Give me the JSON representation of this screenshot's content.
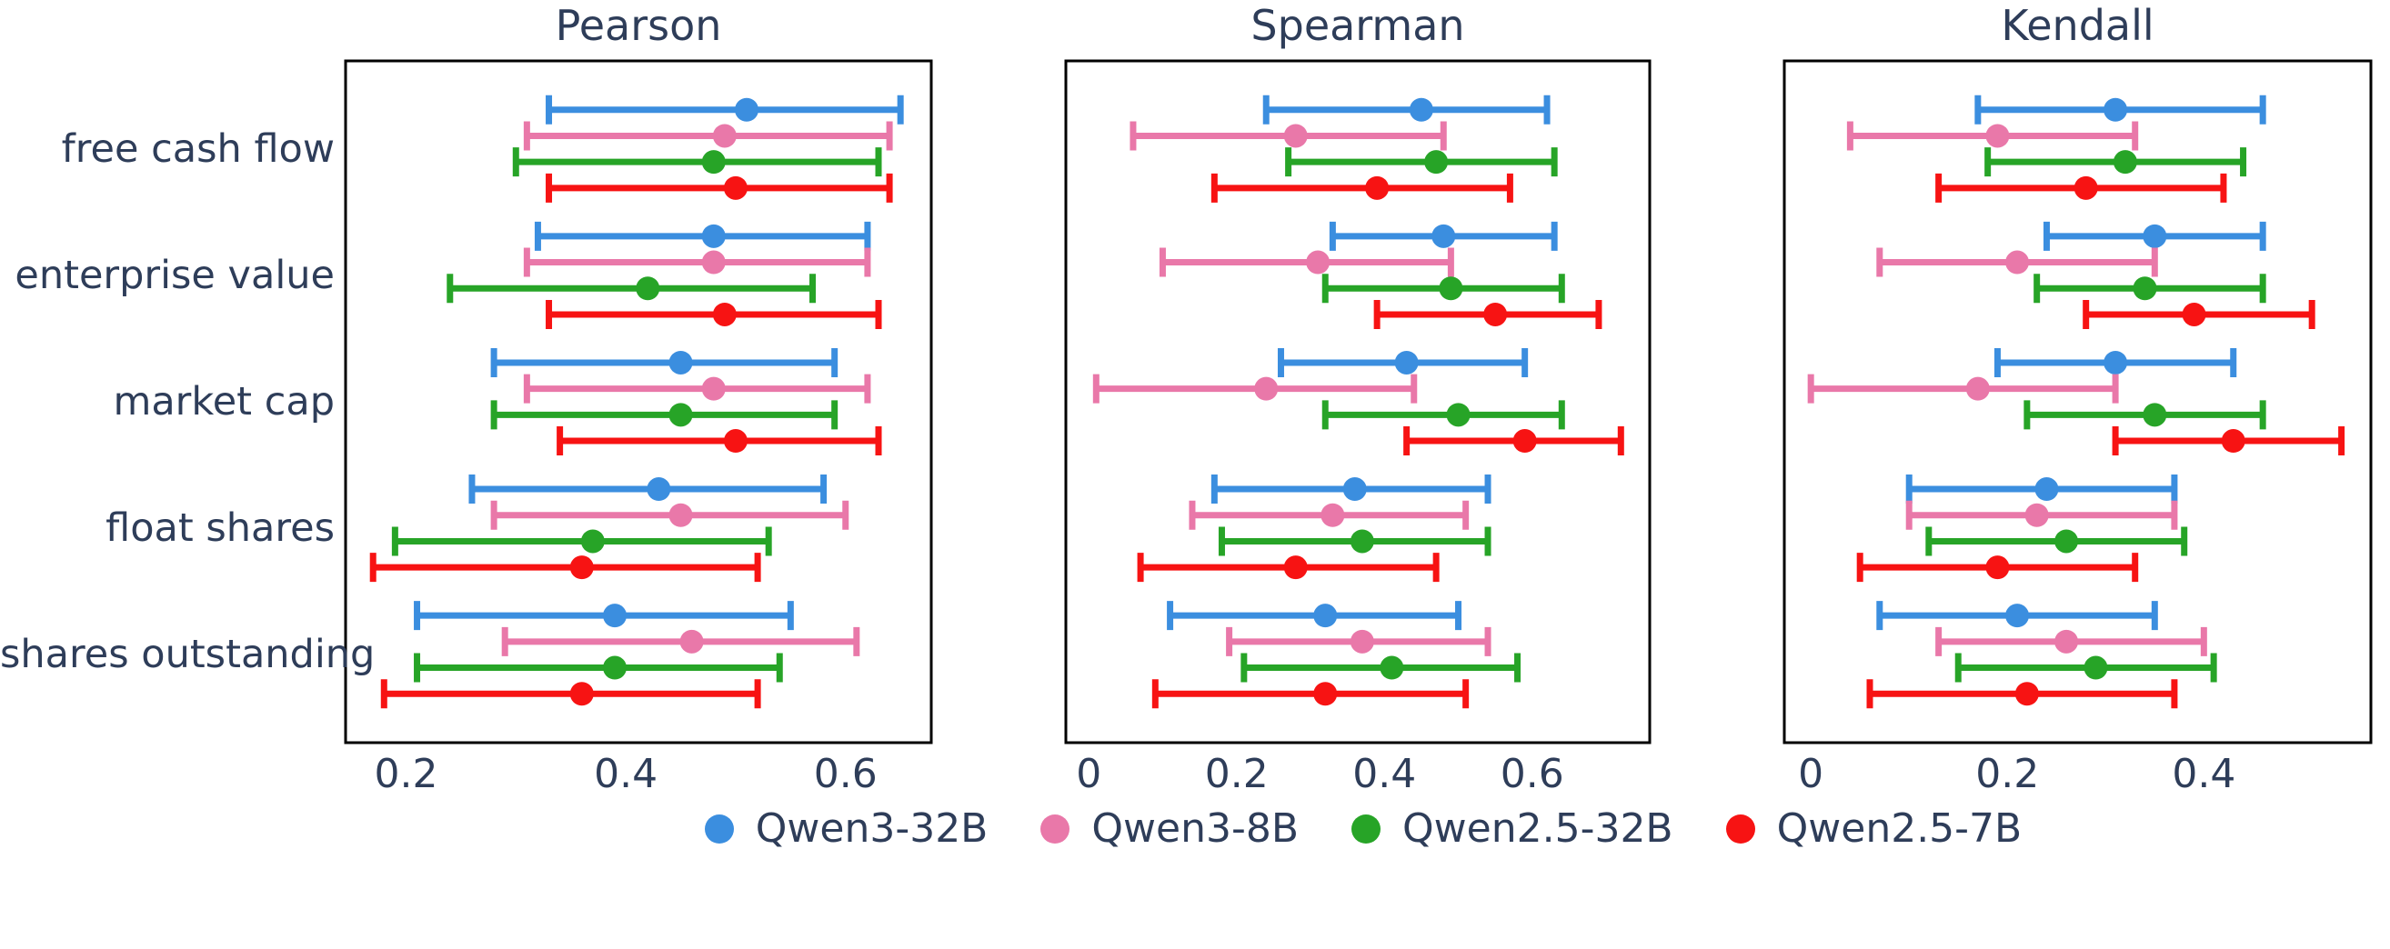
{
  "figure": {
    "background": "#ffffff",
    "text_color": "#2e3d59",
    "border_color": "#000000"
  },
  "chart_data": {
    "type": "scatter",
    "subtype": "dot-with-horizontal-errorbars",
    "orientation": "horizontal",
    "grid": false,
    "categories": [
      "free cash flow",
      "enterprise value",
      "market cap",
      "float shares",
      "shares outstanding"
    ],
    "series_names": [
      "Qwen3-32B",
      "Qwen3-8B",
      "Qwen2.5-32B",
      "Qwen2.5-7B"
    ],
    "series_colors": [
      "#3B8EDF",
      "#E978A9",
      "#27A427",
      "#F71313"
    ],
    "panels": [
      {
        "title": "Pearson",
        "xlim": [
          0.145,
          0.678
        ],
        "xticks": [
          0.2,
          0.4,
          0.6
        ],
        "xtick_labels": [
          "0.2",
          "0.4",
          "0.6"
        ],
        "series": [
          {
            "name": "Qwen3-32B",
            "color": "#3B8EDF",
            "points": [
              [
                0.51,
                0.33,
                0.65
              ],
              [
                0.48,
                0.32,
                0.62
              ],
              [
                0.45,
                0.28,
                0.59
              ],
              [
                0.43,
                0.26,
                0.58
              ],
              [
                0.39,
                0.21,
                0.55
              ]
            ]
          },
          {
            "name": "Qwen3-8B",
            "color": "#E978A9",
            "points": [
              [
                0.49,
                0.31,
                0.64
              ],
              [
                0.48,
                0.31,
                0.62
              ],
              [
                0.48,
                0.31,
                0.62
              ],
              [
                0.45,
                0.28,
                0.6
              ],
              [
                0.46,
                0.29,
                0.61
              ]
            ]
          },
          {
            "name": "Qwen2.5-32B",
            "color": "#27A427",
            "points": [
              [
                0.48,
                0.3,
                0.63
              ],
              [
                0.42,
                0.24,
                0.57
              ],
              [
                0.45,
                0.28,
                0.59
              ],
              [
                0.37,
                0.19,
                0.53
              ],
              [
                0.39,
                0.21,
                0.54
              ]
            ]
          },
          {
            "name": "Qwen2.5-7B",
            "color": "#F71313",
            "points": [
              [
                0.5,
                0.33,
                0.64
              ],
              [
                0.49,
                0.33,
                0.63
              ],
              [
                0.5,
                0.34,
                0.63
              ],
              [
                0.36,
                0.17,
                0.52
              ],
              [
                0.36,
                0.18,
                0.52
              ]
            ]
          }
        ]
      },
      {
        "title": "Spearman",
        "xlim": [
          -0.031,
          0.759
        ],
        "xticks": [
          0,
          0.2,
          0.4,
          0.6
        ],
        "xtick_labels": [
          "0",
          "0.2",
          "0.4",
          "0.6"
        ],
        "series": [
          {
            "name": "Qwen3-32B",
            "color": "#3B8EDF",
            "points": [
              [
                0.45,
                0.24,
                0.62
              ],
              [
                0.48,
                0.33,
                0.63
              ],
              [
                0.43,
                0.26,
                0.59
              ],
              [
                0.36,
                0.17,
                0.54
              ],
              [
                0.32,
                0.11,
                0.5
              ]
            ]
          },
          {
            "name": "Qwen3-8B",
            "color": "#E978A9",
            "points": [
              [
                0.28,
                0.06,
                0.48
              ],
              [
                0.31,
                0.1,
                0.49
              ],
              [
                0.24,
                0.01,
                0.44
              ],
              [
                0.33,
                0.14,
                0.51
              ],
              [
                0.37,
                0.19,
                0.54
              ]
            ]
          },
          {
            "name": "Qwen2.5-32B",
            "color": "#27A427",
            "points": [
              [
                0.47,
                0.27,
                0.63
              ],
              [
                0.49,
                0.32,
                0.64
              ],
              [
                0.5,
                0.32,
                0.64
              ],
              [
                0.37,
                0.18,
                0.54
              ],
              [
                0.41,
                0.21,
                0.58
              ]
            ]
          },
          {
            "name": "Qwen2.5-7B",
            "color": "#F71313",
            "points": [
              [
                0.39,
                0.17,
                0.57
              ],
              [
                0.55,
                0.39,
                0.69
              ],
              [
                0.59,
                0.43,
                0.72
              ],
              [
                0.28,
                0.07,
                0.47
              ],
              [
                0.32,
                0.09,
                0.51
              ]
            ]
          }
        ]
      },
      {
        "title": "Kendall",
        "xlim": [
          -0.027,
          0.57
        ],
        "xticks": [
          0,
          0.2,
          0.4
        ],
        "xtick_labels": [
          "0",
          "0.2",
          "0.4"
        ],
        "series": [
          {
            "name": "Qwen3-32B",
            "color": "#3B8EDF",
            "points": [
              [
                0.31,
                0.17,
                0.46
              ],
              [
                0.35,
                0.24,
                0.46
              ],
              [
                0.31,
                0.19,
                0.43
              ],
              [
                0.24,
                0.1,
                0.37
              ],
              [
                0.21,
                0.07,
                0.35
              ]
            ]
          },
          {
            "name": "Qwen3-8B",
            "color": "#E978A9",
            "points": [
              [
                0.19,
                0.04,
                0.33
              ],
              [
                0.21,
                0.07,
                0.35
              ],
              [
                0.17,
                0.0,
                0.31
              ],
              [
                0.23,
                0.1,
                0.37
              ],
              [
                0.26,
                0.13,
                0.4
              ]
            ]
          },
          {
            "name": "Qwen2.5-32B",
            "color": "#27A427",
            "points": [
              [
                0.32,
                0.18,
                0.44
              ],
              [
                0.34,
                0.23,
                0.46
              ],
              [
                0.35,
                0.22,
                0.46
              ],
              [
                0.26,
                0.12,
                0.38
              ],
              [
                0.29,
                0.15,
                0.41
              ]
            ]
          },
          {
            "name": "Qwen2.5-7B",
            "color": "#F71313",
            "points": [
              [
                0.28,
                0.13,
                0.42
              ],
              [
                0.39,
                0.28,
                0.51
              ],
              [
                0.43,
                0.31,
                0.54
              ],
              [
                0.19,
                0.05,
                0.33
              ],
              [
                0.22,
                0.06,
                0.37
              ]
            ]
          }
        ]
      }
    ],
    "legend": [
      {
        "label": "Qwen3-32B",
        "color": "#3B8EDF"
      },
      {
        "label": "Qwen3-8B",
        "color": "#E978A9"
      },
      {
        "label": "Qwen2.5-32B",
        "color": "#27A427"
      },
      {
        "label": "Qwen2.5-7B",
        "color": "#F71313"
      }
    ],
    "legend_position": "bottom-center"
  }
}
